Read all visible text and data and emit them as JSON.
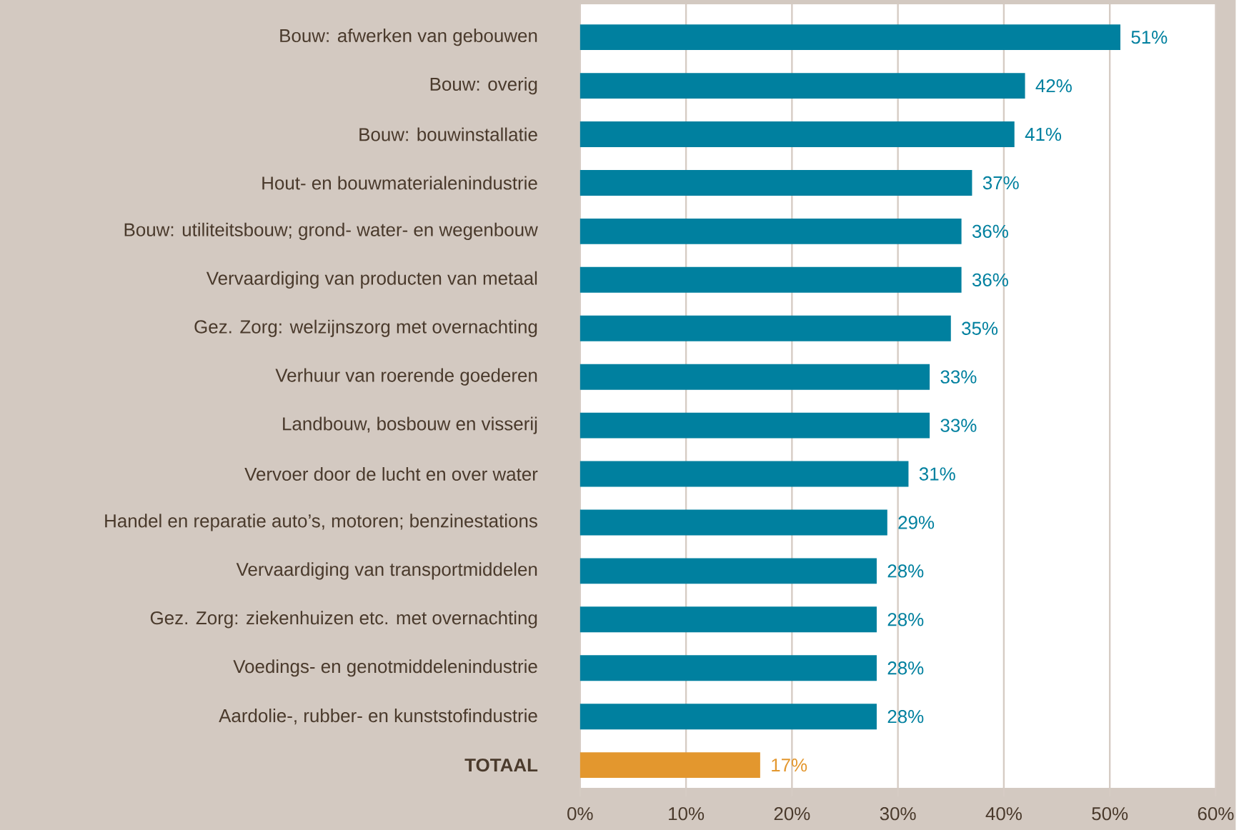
{
  "chart_data": {
    "type": "bar",
    "orientation": "horizontal",
    "categories": [
      "Bouw: afwerken van gebouwen",
      "Bouw: overig",
      "Bouw: bouwinstallatie",
      "Hout- en bouwmaterialenindustrie",
      "Bouw: utiliteitsbouw; grond- water- en wegenbouw",
      "Vervaardiging van producten van metaal",
      "Gez. Zorg: welzijnszorg met overnachting",
      "Verhuur van roerende goederen",
      "Landbouw, bosbouw en visserij",
      "Vervoer door de lucht en over water",
      "Handel en reparatie auto’s, motoren; benzinestations",
      "Vervaardiging van transportmiddelen",
      "Gez. Zorg: ziekenhuizen etc. met overnachting",
      "Voedings- en genotmiddelenindustrie",
      "Aardolie-, rubber- en kunststofindustrie",
      "**TOTAAL**"
    ],
    "values": [
      51,
      42,
      41,
      37,
      36,
      36,
      35,
      33,
      33,
      31,
      29,
      28,
      28,
      28,
      28,
      17
    ],
    "value_labels": [
      "51%",
      "42%",
      "41%",
      "37%",
      "36%",
      "36%",
      "35%",
      "33%",
      "33%",
      "31%",
      "29%",
      "28%",
      "28%",
      "28%",
      "28%",
      "17%"
    ],
    "colors": [
      "#00809f",
      "#00809f",
      "#00809f",
      "#00809f",
      "#00809f",
      "#00809f",
      "#00809f",
      "#00809f",
      "#00809f",
      "#00809f",
      "#00809f",
      "#00809f",
      "#00809f",
      "#00809f",
      "#00809f",
      "#e3972e"
    ],
    "xlim": [
      0,
      60
    ],
    "xticks": [
      {
        "value": 0,
        "label": "0%"
      },
      {
        "value": 10,
        "label": "10%"
      },
      {
        "value": 20,
        "label": "20%"
      },
      {
        "value": 30,
        "label": "30%"
      },
      {
        "value": 40,
        "label": "40%"
      },
      {
        "value": 50,
        "label": "50%"
      },
      {
        "value": 60,
        "label": "60%"
      }
    ],
    "grid": "x"
  }
}
